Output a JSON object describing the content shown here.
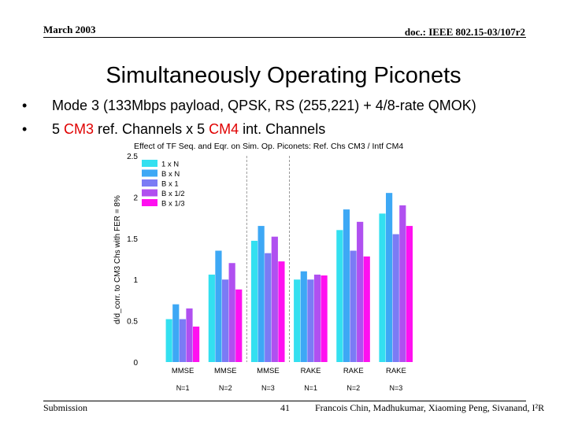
{
  "header": {
    "date": "March 2003",
    "doc_id": "doc.: IEEE 802.15-03/107r2"
  },
  "slide": {
    "title": "Simultaneously Operating Piconets",
    "bullets": [
      {
        "marker": "•",
        "text": "Mode 3 (133Mbps payload, QPSK, RS (255,221) + 4/8-rate QMOK)"
      },
      {
        "marker": "•",
        "pre": "5 ",
        "highlight1": "CM3",
        "mid": " ref. Channels x 5 ",
        "highlight2": "CM4",
        "post": " int. Channels"
      }
    ]
  },
  "footer": {
    "left": "Submission",
    "page": "41",
    "authors": "Francois Chin, Madhukumar, Xiaoming Peng, Sivanand, I²R"
  },
  "colors": {
    "accent_red": "#e00000",
    "series": [
      "#33e0f0",
      "#3da8f5",
      "#7b7bf5",
      "#b050f0",
      "#ff10f0"
    ]
  },
  "chart_data": {
    "type": "bar",
    "title": "Effect of TF Seq. and Eqr. on Sim. Op. Piconets: Ref. Chs CM3 / Intf CM4",
    "ylabel": "d/d_corr. to CM3 Chs with FER = 8%",
    "ylim": [
      0,
      2.5
    ],
    "yticks": [
      "0",
      "0.5",
      "1",
      "1.5",
      "2",
      "2.5"
    ],
    "categories": [
      "MMSE",
      "MMSE",
      "MMSE",
      "RAKE",
      "RAKE",
      "RAKE"
    ],
    "subcategories": [
      "N=1",
      "N=2",
      "N=3",
      "N=1",
      "N=2",
      "N=3"
    ],
    "grid": "vertical dashed separators between groups",
    "legend_position": "top-left",
    "series": [
      {
        "name": "1 x N",
        "values": [
          0.52,
          1.06,
          1.47,
          1.0,
          1.6,
          1.8
        ]
      },
      {
        "name": "B x N",
        "values": [
          0.7,
          1.35,
          1.65,
          1.1,
          1.85,
          2.05
        ]
      },
      {
        "name": "B x 1",
        "values": [
          0.52,
          1.0,
          1.32,
          1.0,
          1.35,
          1.55
        ]
      },
      {
        "name": "B x 1/2",
        "values": [
          0.65,
          1.2,
          1.52,
          1.06,
          1.7,
          1.9
        ]
      },
      {
        "name": "B x 1/3",
        "values": [
          0.43,
          0.88,
          1.22,
          1.05,
          1.28,
          1.65
        ]
      }
    ]
  }
}
